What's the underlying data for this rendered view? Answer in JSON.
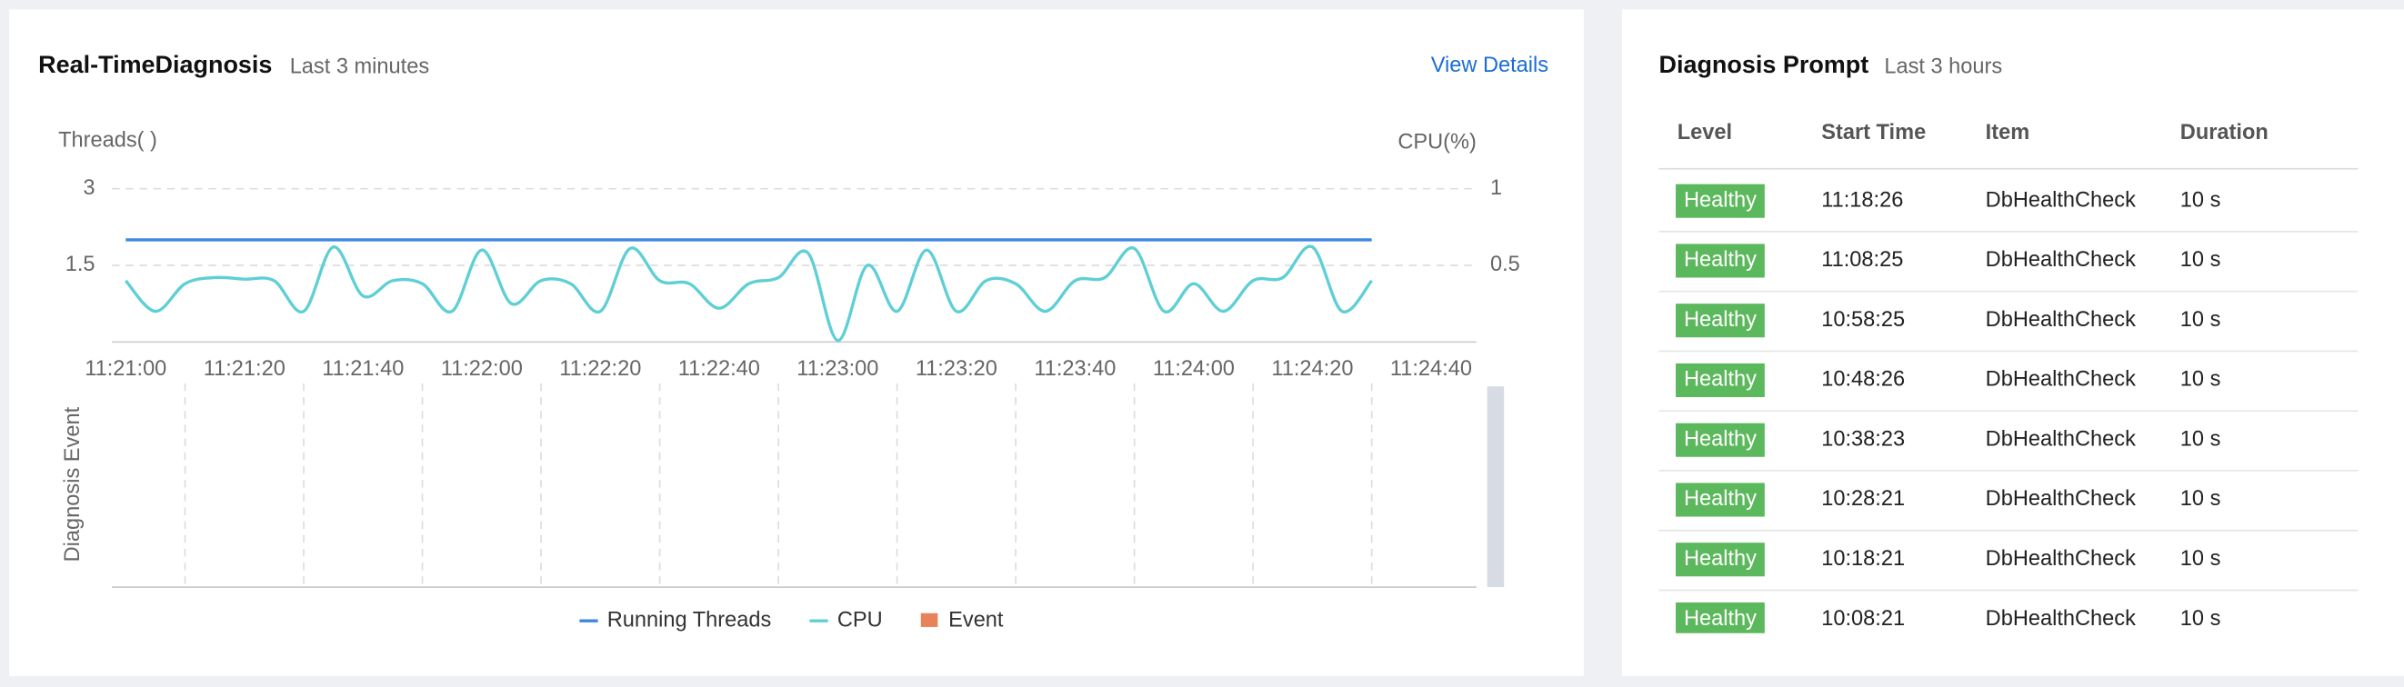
{
  "left_panel": {
    "title": "Real-TimeDiagnosis",
    "subtitle": "Last 3 minutes",
    "link": "View Details"
  },
  "chart_data": {
    "type": "line",
    "y_label": "Threads( )",
    "y2_label": "CPU(%)",
    "event_axis_label": "Diagnosis Event",
    "x": [
      "11:21:00",
      null,
      null,
      null,
      "11:21:20",
      null,
      null,
      null,
      "11:21:40",
      null,
      null,
      null,
      "11:22:00",
      null,
      null,
      null,
      "11:22:20",
      null,
      null,
      null,
      "11:22:40",
      null,
      null,
      null,
      "11:23:00",
      null,
      null,
      null,
      "11:23:20",
      null,
      null,
      null,
      "11:23:40",
      null,
      null,
      null,
      "11:24:00",
      null,
      null,
      null,
      "11:24:20",
      null,
      null,
      null,
      "11:24:40"
    ],
    "ylim": [
      0,
      3
    ],
    "yticks": [
      1.5,
      3
    ],
    "y2lim": [
      0,
      1
    ],
    "y2ticks": [
      0.5,
      1
    ],
    "grid": true,
    "series": [
      {
        "name": "Running Threads",
        "color": "#3d87e0",
        "values": [
          2,
          2,
          2,
          2,
          2,
          2,
          2,
          2,
          2,
          2,
          2,
          2,
          2,
          2,
          2,
          2,
          2,
          2,
          2,
          2,
          2,
          2,
          2,
          2,
          2,
          2,
          2,
          2,
          2,
          2,
          2,
          2,
          2,
          2,
          2,
          2,
          2,
          2,
          2,
          2,
          2,
          2,
          2,
          null,
          null
        ]
      },
      {
        "name": "CPU",
        "color": "#5fcfd6",
        "axis": "y2",
        "values": [
          0.4,
          0.2,
          0.38,
          0.42,
          0.41,
          0.4,
          0.2,
          0.62,
          0.3,
          0.4,
          0.38,
          0.2,
          0.6,
          0.25,
          0.4,
          0.38,
          0.2,
          0.61,
          0.4,
          0.38,
          0.22,
          0.38,
          0.42,
          0.58,
          0.01,
          0.5,
          0.2,
          0.6,
          0.2,
          0.4,
          0.38,
          0.2,
          0.4,
          0.42,
          0.61,
          0.2,
          0.38,
          0.2,
          0.4,
          0.42,
          0.62,
          0.2,
          0.4,
          null,
          null
        ]
      },
      {
        "name": "Event",
        "color": "#e8825a",
        "type": "bar",
        "values": [
          null,
          null,
          null,
          null,
          null,
          null,
          null,
          null,
          null,
          null,
          null,
          null,
          null,
          null,
          null,
          null,
          null,
          null,
          null,
          null,
          null,
          null,
          null,
          null,
          null,
          null,
          null,
          null,
          null,
          null,
          null,
          null,
          null,
          null,
          null,
          null,
          null,
          null,
          null,
          null,
          null,
          null,
          null,
          null,
          null
        ]
      }
    ]
  },
  "right_panel": {
    "title": "Diagnosis Prompt",
    "subtitle": "Last 3 hours",
    "table": {
      "columns": [
        "Level",
        "Start Time",
        "Item",
        "Duration"
      ],
      "rows": [
        [
          "Healthy",
          "11:18:26",
          "DbHealthCheck",
          "10 s"
        ],
        [
          "Healthy",
          "11:08:25",
          "DbHealthCheck",
          "10 s"
        ],
        [
          "Healthy",
          "10:58:25",
          "DbHealthCheck",
          "10 s"
        ],
        [
          "Healthy",
          "10:48:26",
          "DbHealthCheck",
          "10 s"
        ],
        [
          "Healthy",
          "10:38:23",
          "DbHealthCheck",
          "10 s"
        ],
        [
          "Healthy",
          "10:28:21",
          "DbHealthCheck",
          "10 s"
        ],
        [
          "Healthy",
          "10:18:21",
          "DbHealthCheck",
          "10 s"
        ],
        [
          "Healthy",
          "10:08:21",
          "DbHealthCheck",
          "10 s"
        ]
      ]
    }
  }
}
